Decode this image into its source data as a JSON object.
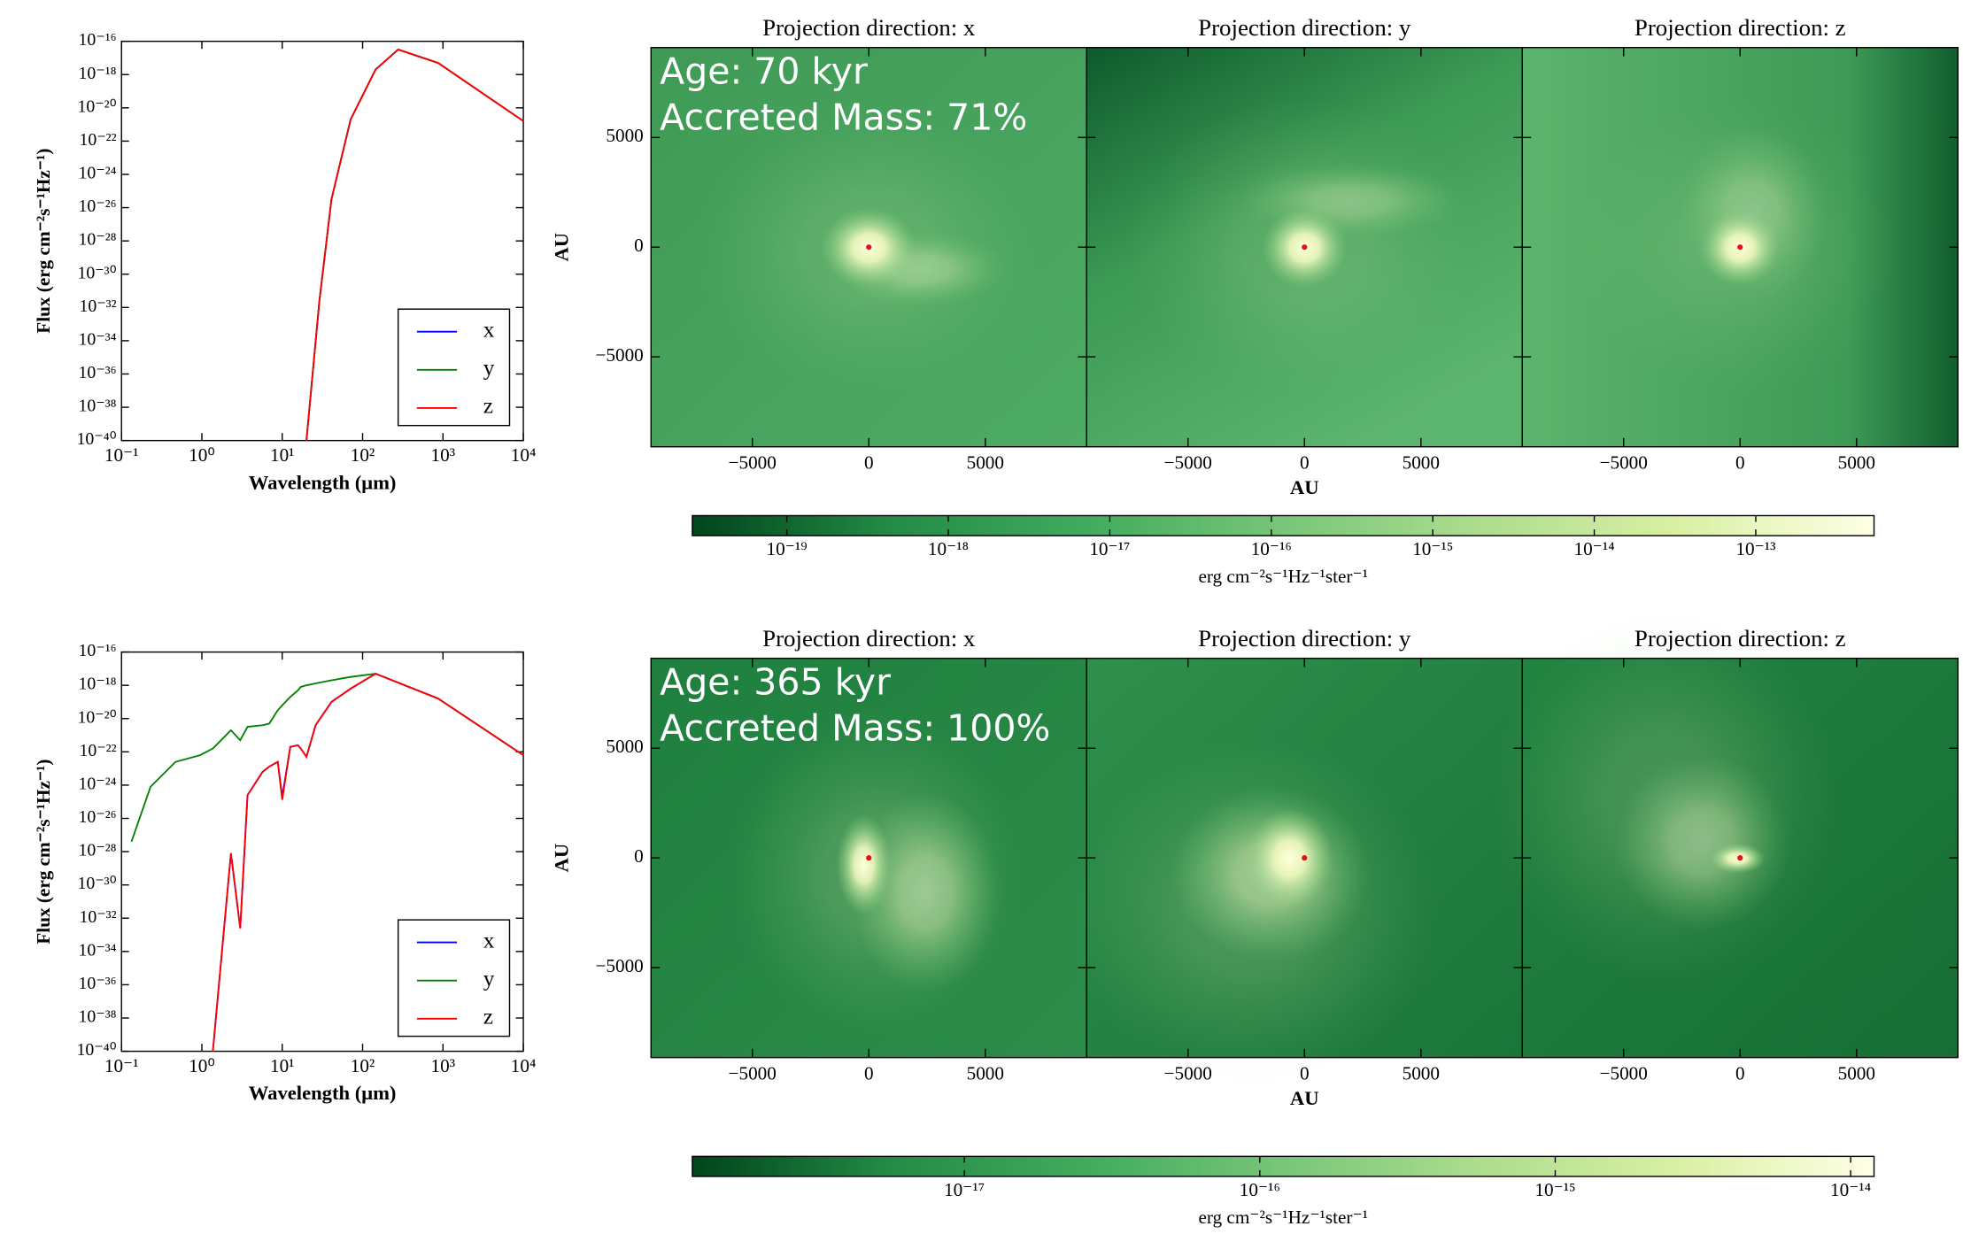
{
  "chart_data": [
    {
      "type": "line",
      "xscale": "log",
      "yscale": "log",
      "xlabel": "Wavelength (μm)",
      "ylabel": "Flux (erg cm⁻²s⁻¹Hz⁻¹)",
      "xlim": [
        0.1,
        10000
      ],
      "ylim": [
        1e-40,
        1e-16
      ],
      "xticks": [
        {
          "value": 0.1,
          "label": "10⁻¹"
        },
        {
          "value": 1,
          "label": "10⁰"
        },
        {
          "value": 10,
          "label": "10¹"
        },
        {
          "value": 100,
          "label": "10²"
        },
        {
          "value": 1000,
          "label": "10³"
        },
        {
          "value": 10000,
          "label": "10⁴"
        }
      ],
      "yticks": [
        {
          "value": 1e-16,
          "label": "10⁻¹⁶"
        },
        {
          "value": 1e-18,
          "label": "10⁻¹⁸"
        },
        {
          "value": 1e-20,
          "label": "10⁻²⁰"
        },
        {
          "value": 1e-22,
          "label": "10⁻²²"
        },
        {
          "value": 1e-24,
          "label": "10⁻²⁴"
        },
        {
          "value": 1e-26,
          "label": "10⁻²⁶"
        },
        {
          "value": 1e-28,
          "label": "10⁻²⁸"
        },
        {
          "value": 1e-30,
          "label": "10⁻³⁰"
        },
        {
          "value": 1e-32,
          "label": "10⁻³²"
        },
        {
          "value": 1e-34,
          "label": "10⁻³⁴"
        },
        {
          "value": 1e-36,
          "label": "10⁻³⁶"
        },
        {
          "value": 1e-38,
          "label": "10⁻³⁸"
        },
        {
          "value": 1e-40,
          "label": "10⁻⁴⁰"
        }
      ],
      "x": [
        20,
        29,
        41,
        71,
        145,
        277,
        870,
        10000
      ],
      "series": [
        {
          "name": "x",
          "color": "#0000ff",
          "values": [
            1e-40,
            2.5e-32,
            3.2e-26,
            2e-21,
            2e-18,
            3.2e-17,
            5e-18,
            1.6e-21
          ]
        },
        {
          "name": "y",
          "color": "#008000",
          "values": [
            1e-40,
            2.5e-32,
            3.2e-26,
            2e-21,
            2e-18,
            3.2e-17,
            5e-18,
            1.6e-21
          ]
        },
        {
          "name": "z",
          "color": "#ff0000",
          "values": [
            1e-40,
            2.5e-32,
            3.2e-26,
            2e-21,
            2e-18,
            3.2e-17,
            5e-18,
            1.6e-21
          ]
        }
      ],
      "legend": "lower right"
    },
    {
      "type": "image",
      "xlabel": "AU",
      "ylabel": "AU",
      "titles": [
        "Projection direction: x",
        "Projection direction: y",
        "Projection direction: z"
      ],
      "annotations": [
        "Age: 70 kyr",
        "Accreted Mass: 71%"
      ],
      "xlim": [
        -9350,
        9350
      ],
      "ylim": [
        -9100,
        9100
      ],
      "xticks": [
        {
          "value": -5000,
          "label": "−5000"
        },
        0,
        5000
      ],
      "yticks": [
        {
          "value": -5000,
          "label": "−5000"
        },
        0,
        5000
      ],
      "colorbar": {
        "label": "erg cm⁻²s⁻¹Hz⁻¹ster⁻¹",
        "scale": "log",
        "lim": [
          2.6e-20,
          5.4e-13
        ],
        "colors": [
          "#00441b",
          "#238b45",
          "#41ab5d",
          "#78c679",
          "#addd8e",
          "#d9f0a3",
          "#ffffe5"
        ],
        "ticks": [
          {
            "value": 1e-19,
            "label": "10⁻¹⁹"
          },
          {
            "value": 1e-18,
            "label": "10⁻¹⁸"
          },
          {
            "value": 1e-17,
            "label": "10⁻¹⁷"
          },
          {
            "value": 1e-16,
            "label": "10⁻¹⁶"
          },
          {
            "value": 1e-15,
            "label": "10⁻¹⁵"
          },
          {
            "value": 1e-14,
            "label": "10⁻¹⁴"
          },
          {
            "value": 1e-13,
            "label": "10⁻¹³"
          }
        ]
      }
    },
    {
      "type": "line",
      "xscale": "log",
      "yscale": "log",
      "xlabel": "Wavelength (μm)",
      "ylabel": "Flux (erg cm⁻²s⁻¹Hz⁻¹)",
      "xlim": [
        0.1,
        10000
      ],
      "ylim": [
        1e-40,
        1e-16
      ],
      "xticks": [
        {
          "value": 0.1,
          "label": "10⁻¹"
        },
        {
          "value": 1,
          "label": "10⁰"
        },
        {
          "value": 10,
          "label": "10¹"
        },
        {
          "value": 100,
          "label": "10²"
        },
        {
          "value": 1000,
          "label": "10³"
        },
        {
          "value": 10000,
          "label": "10⁴"
        }
      ],
      "yticks": [
        {
          "value": 1e-16,
          "label": "10⁻¹⁶"
        },
        {
          "value": 1e-18,
          "label": "10⁻¹⁸"
        },
        {
          "value": 1e-20,
          "label": "10⁻²⁰"
        },
        {
          "value": 1e-22,
          "label": "10⁻²²"
        },
        {
          "value": 1e-24,
          "label": "10⁻²⁴"
        },
        {
          "value": 1e-26,
          "label": "10⁻²⁶"
        },
        {
          "value": 1e-28,
          "label": "10⁻²⁸"
        },
        {
          "value": 1e-30,
          "label": "10⁻³⁰"
        },
        {
          "value": 1e-32,
          "label": "10⁻³²"
        },
        {
          "value": 1e-34,
          "label": "10⁻³⁴"
        },
        {
          "value": 1e-36,
          "label": "10⁻³⁶"
        },
        {
          "value": 1e-38,
          "label": "10⁻³⁸"
        },
        {
          "value": 1e-40,
          "label": "10⁻⁴⁰"
        }
      ],
      "x": [
        0.133,
        0.23,
        0.47,
        0.95,
        1.37,
        2.3,
        3.0,
        3.7,
        5.7,
        6.9,
        8.8,
        10,
        12.6,
        15.7,
        17,
        20,
        26,
        41,
        71,
        145,
        870,
        10000
      ],
      "series": [
        {
          "name": "x",
          "color": "#0000ff",
          "values": [
            null,
            null,
            null,
            null,
            1e-40,
            8e-29,
            2.5e-33,
            2.5e-25,
            6.3e-24,
            1.3e-23,
            2.5e-23,
            2e-25,
            2e-22,
            2.5e-22,
            1.6e-22,
            5e-23,
            4e-21,
            1e-19,
            6.3e-19,
            5e-18,
            1.6e-19,
            6.3e-23
          ]
        },
        {
          "name": "y",
          "color": "#008000",
          "values": [
            4e-28,
            8e-25,
            2.5e-23,
            6.3e-23,
            1.6e-22,
            2e-21,
            5e-22,
            3.2e-21,
            4e-21,
            5e-21,
            3.2e-20,
            6.3e-20,
            2e-19,
            5e-19,
            8e-19,
            1e-18,
            1.3e-18,
            2e-18,
            3.2e-18,
            5e-18,
            1.6e-19,
            6.3e-23
          ]
        },
        {
          "name": "z",
          "color": "#ff0000",
          "values": [
            null,
            null,
            null,
            null,
            1e-40,
            8e-29,
            2.5e-33,
            2.5e-25,
            6.3e-24,
            1.3e-23,
            2.5e-23,
            1.3e-25,
            2e-22,
            2.5e-22,
            1.6e-22,
            5e-23,
            4e-21,
            1e-19,
            6.3e-19,
            5e-18,
            1.6e-19,
            6.3e-23
          ]
        }
      ],
      "legend": "lower right"
    },
    {
      "type": "image",
      "xlabel": "AU",
      "ylabel": "AU",
      "titles": [
        "Projection direction: x",
        "Projection direction: y",
        "Projection direction: z"
      ],
      "annotations": [
        "Age: 365 kyr",
        "Accreted Mass: 100%"
      ],
      "xlim": [
        -9350,
        9350
      ],
      "ylim": [
        -9100,
        9100
      ],
      "xticks": [
        {
          "value": -5000,
          "label": "−5000"
        },
        0,
        5000
      ],
      "yticks": [
        {
          "value": -5000,
          "label": "−5000"
        },
        0,
        5000
      ],
      "colorbar": {
        "label": "erg cm⁻²s⁻¹Hz⁻¹ster⁻¹",
        "scale": "log",
        "lim": [
          1.2e-18,
          1.2e-14
        ],
        "colors": [
          "#00441b",
          "#238b45",
          "#41ab5d",
          "#78c679",
          "#addd8e",
          "#d9f0a3",
          "#ffffe5"
        ],
        "ticks": [
          {
            "value": 1e-17,
            "label": "10⁻¹⁷"
          },
          {
            "value": 1e-16,
            "label": "10⁻¹⁶"
          },
          {
            "value": 1e-15,
            "label": "10⁻¹⁵"
          },
          {
            "value": 1e-14,
            "label": "10⁻¹⁴"
          }
        ]
      }
    }
  ]
}
